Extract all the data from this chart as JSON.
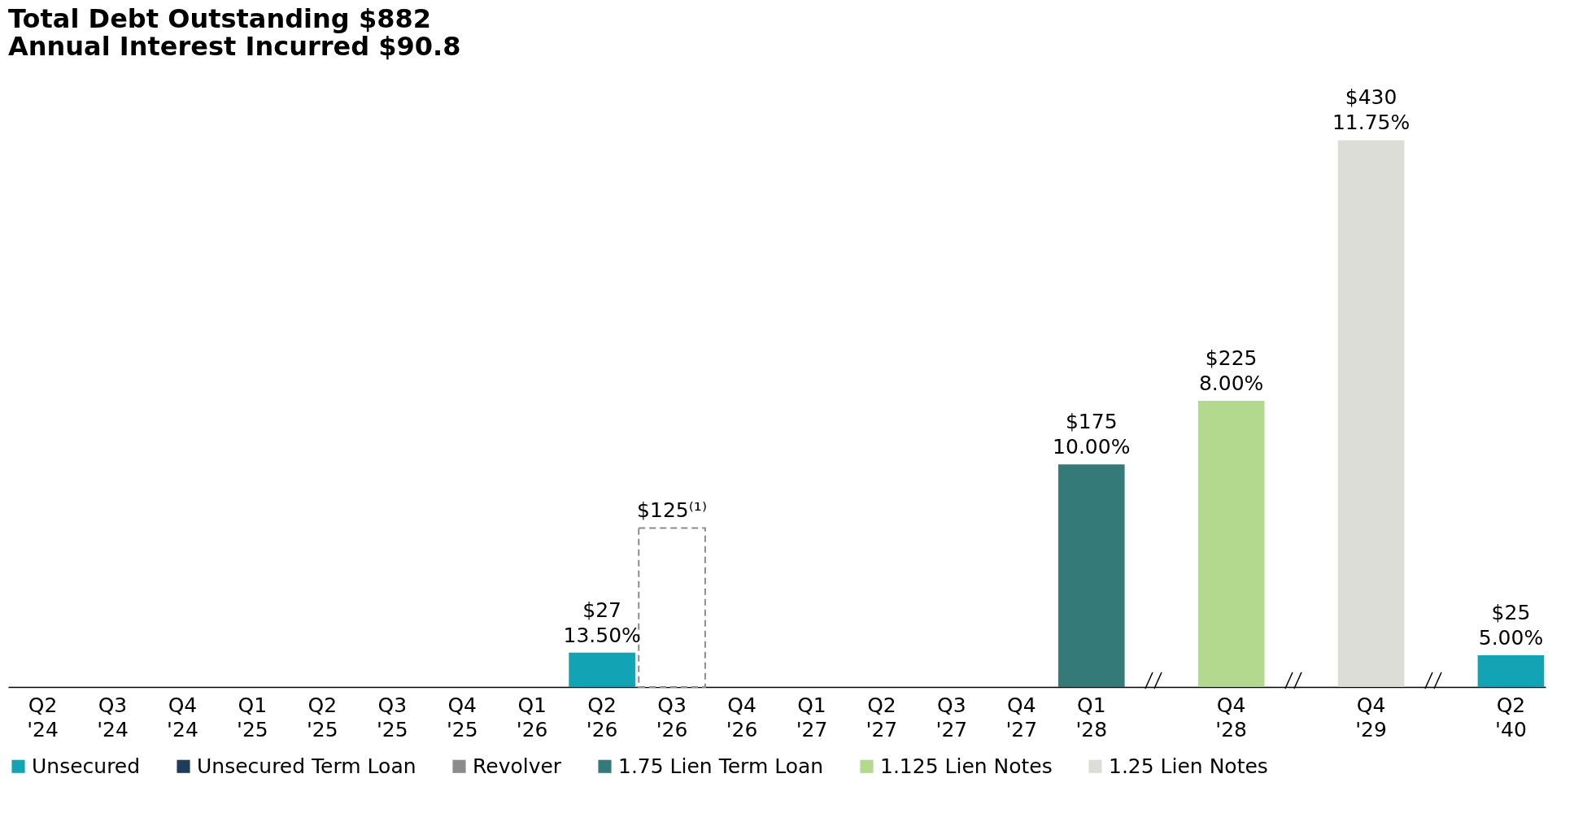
{
  "chart_data": {
    "type": "bar",
    "title": "Total Debt Outstanding $882",
    "subtitle": "Annual Interest Incurred $90.8",
    "legend": "bottom",
    "categories": [
      "Q2 '24",
      "Q3 '24",
      "Q4 '24",
      "Q1 '25",
      "Q2 '25",
      "Q3 '25",
      "Q4 '25",
      "Q1 '26",
      "Q2 '26",
      "Q3 '26",
      "Q4 '26",
      "Q1 '27",
      "Q2 '27",
      "Q3 '27",
      "Q4 '27",
      "Q1 '28",
      null,
      "Q4 '28",
      null,
      "Q4 '29",
      null,
      "Q2 '40"
    ],
    "series": [
      {
        "name": "Unsecured",
        "color": "#12a4b4",
        "values": [
          null,
          null,
          null,
          null,
          null,
          null,
          null,
          null,
          27,
          null,
          null,
          null,
          null,
          null,
          null,
          null,
          null,
          null,
          null,
          null,
          null,
          25
        ],
        "value_labels": [
          null,
          null,
          null,
          null,
          null,
          null,
          null,
          null,
          "$27\n13.50%",
          null,
          null,
          null,
          null,
          null,
          null,
          null,
          null,
          null,
          null,
          null,
          null,
          "$25\n5.00%"
        ]
      },
      {
        "name": "Unsecured Term Loan",
        "color": "#1f3d5a",
        "values": [
          null,
          null,
          null,
          null,
          null,
          null,
          null,
          null,
          null,
          null,
          null,
          null,
          null,
          null,
          null,
          null,
          null,
          null,
          null,
          null,
          null,
          null
        ]
      },
      {
        "name": "Revolver",
        "color": "#8c8c8c",
        "line_style": "dashed",
        "values": [
          null,
          null,
          null,
          null,
          null,
          null,
          null,
          null,
          null,
          125,
          null,
          null,
          null,
          null,
          null,
          null,
          null,
          null,
          null,
          null,
          null,
          null
        ],
        "value_labels": [
          null,
          null,
          null,
          null,
          null,
          null,
          null,
          null,
          null,
          "$125⁽¹⁾",
          null,
          null,
          null,
          null,
          null,
          null,
          null,
          null,
          null,
          null,
          null,
          null
        ]
      },
      {
        "name": "1.75 Lien Term Loan",
        "color": "#337a78",
        "values": [
          null,
          null,
          null,
          null,
          null,
          null,
          null,
          null,
          null,
          null,
          null,
          null,
          null,
          null,
          null,
          175,
          null,
          null,
          null,
          null,
          null,
          null
        ],
        "value_labels": [
          null,
          null,
          null,
          null,
          null,
          null,
          null,
          null,
          null,
          null,
          null,
          null,
          null,
          null,
          null,
          "$175\n10.00%",
          null,
          null,
          null,
          null,
          null,
          null
        ]
      },
      {
        "name": "1.125 Lien Notes",
        "color": "#b3d98f",
        "values": [
          null,
          null,
          null,
          null,
          null,
          null,
          null,
          null,
          null,
          null,
          null,
          null,
          null,
          null,
          null,
          null,
          null,
          225,
          null,
          null,
          null,
          null
        ],
        "value_labels": [
          null,
          null,
          null,
          null,
          null,
          null,
          null,
          null,
          null,
          null,
          null,
          null,
          null,
          null,
          null,
          null,
          null,
          "$225\n8.00%",
          null,
          null,
          null,
          null
        ]
      },
      {
        "name": "1.25 Lien Notes",
        "color": "#dcddd7",
        "values": [
          null,
          null,
          null,
          null,
          null,
          null,
          null,
          null,
          null,
          null,
          null,
          null,
          null,
          null,
          null,
          null,
          null,
          null,
          null,
          430,
          null,
          null
        ],
        "value_labels": [
          null,
          null,
          null,
          null,
          null,
          null,
          null,
          null,
          null,
          null,
          null,
          null,
          null,
          null,
          null,
          null,
          null,
          null,
          null,
          "$430\n11.75%",
          null,
          null
        ]
      }
    ]
  }
}
